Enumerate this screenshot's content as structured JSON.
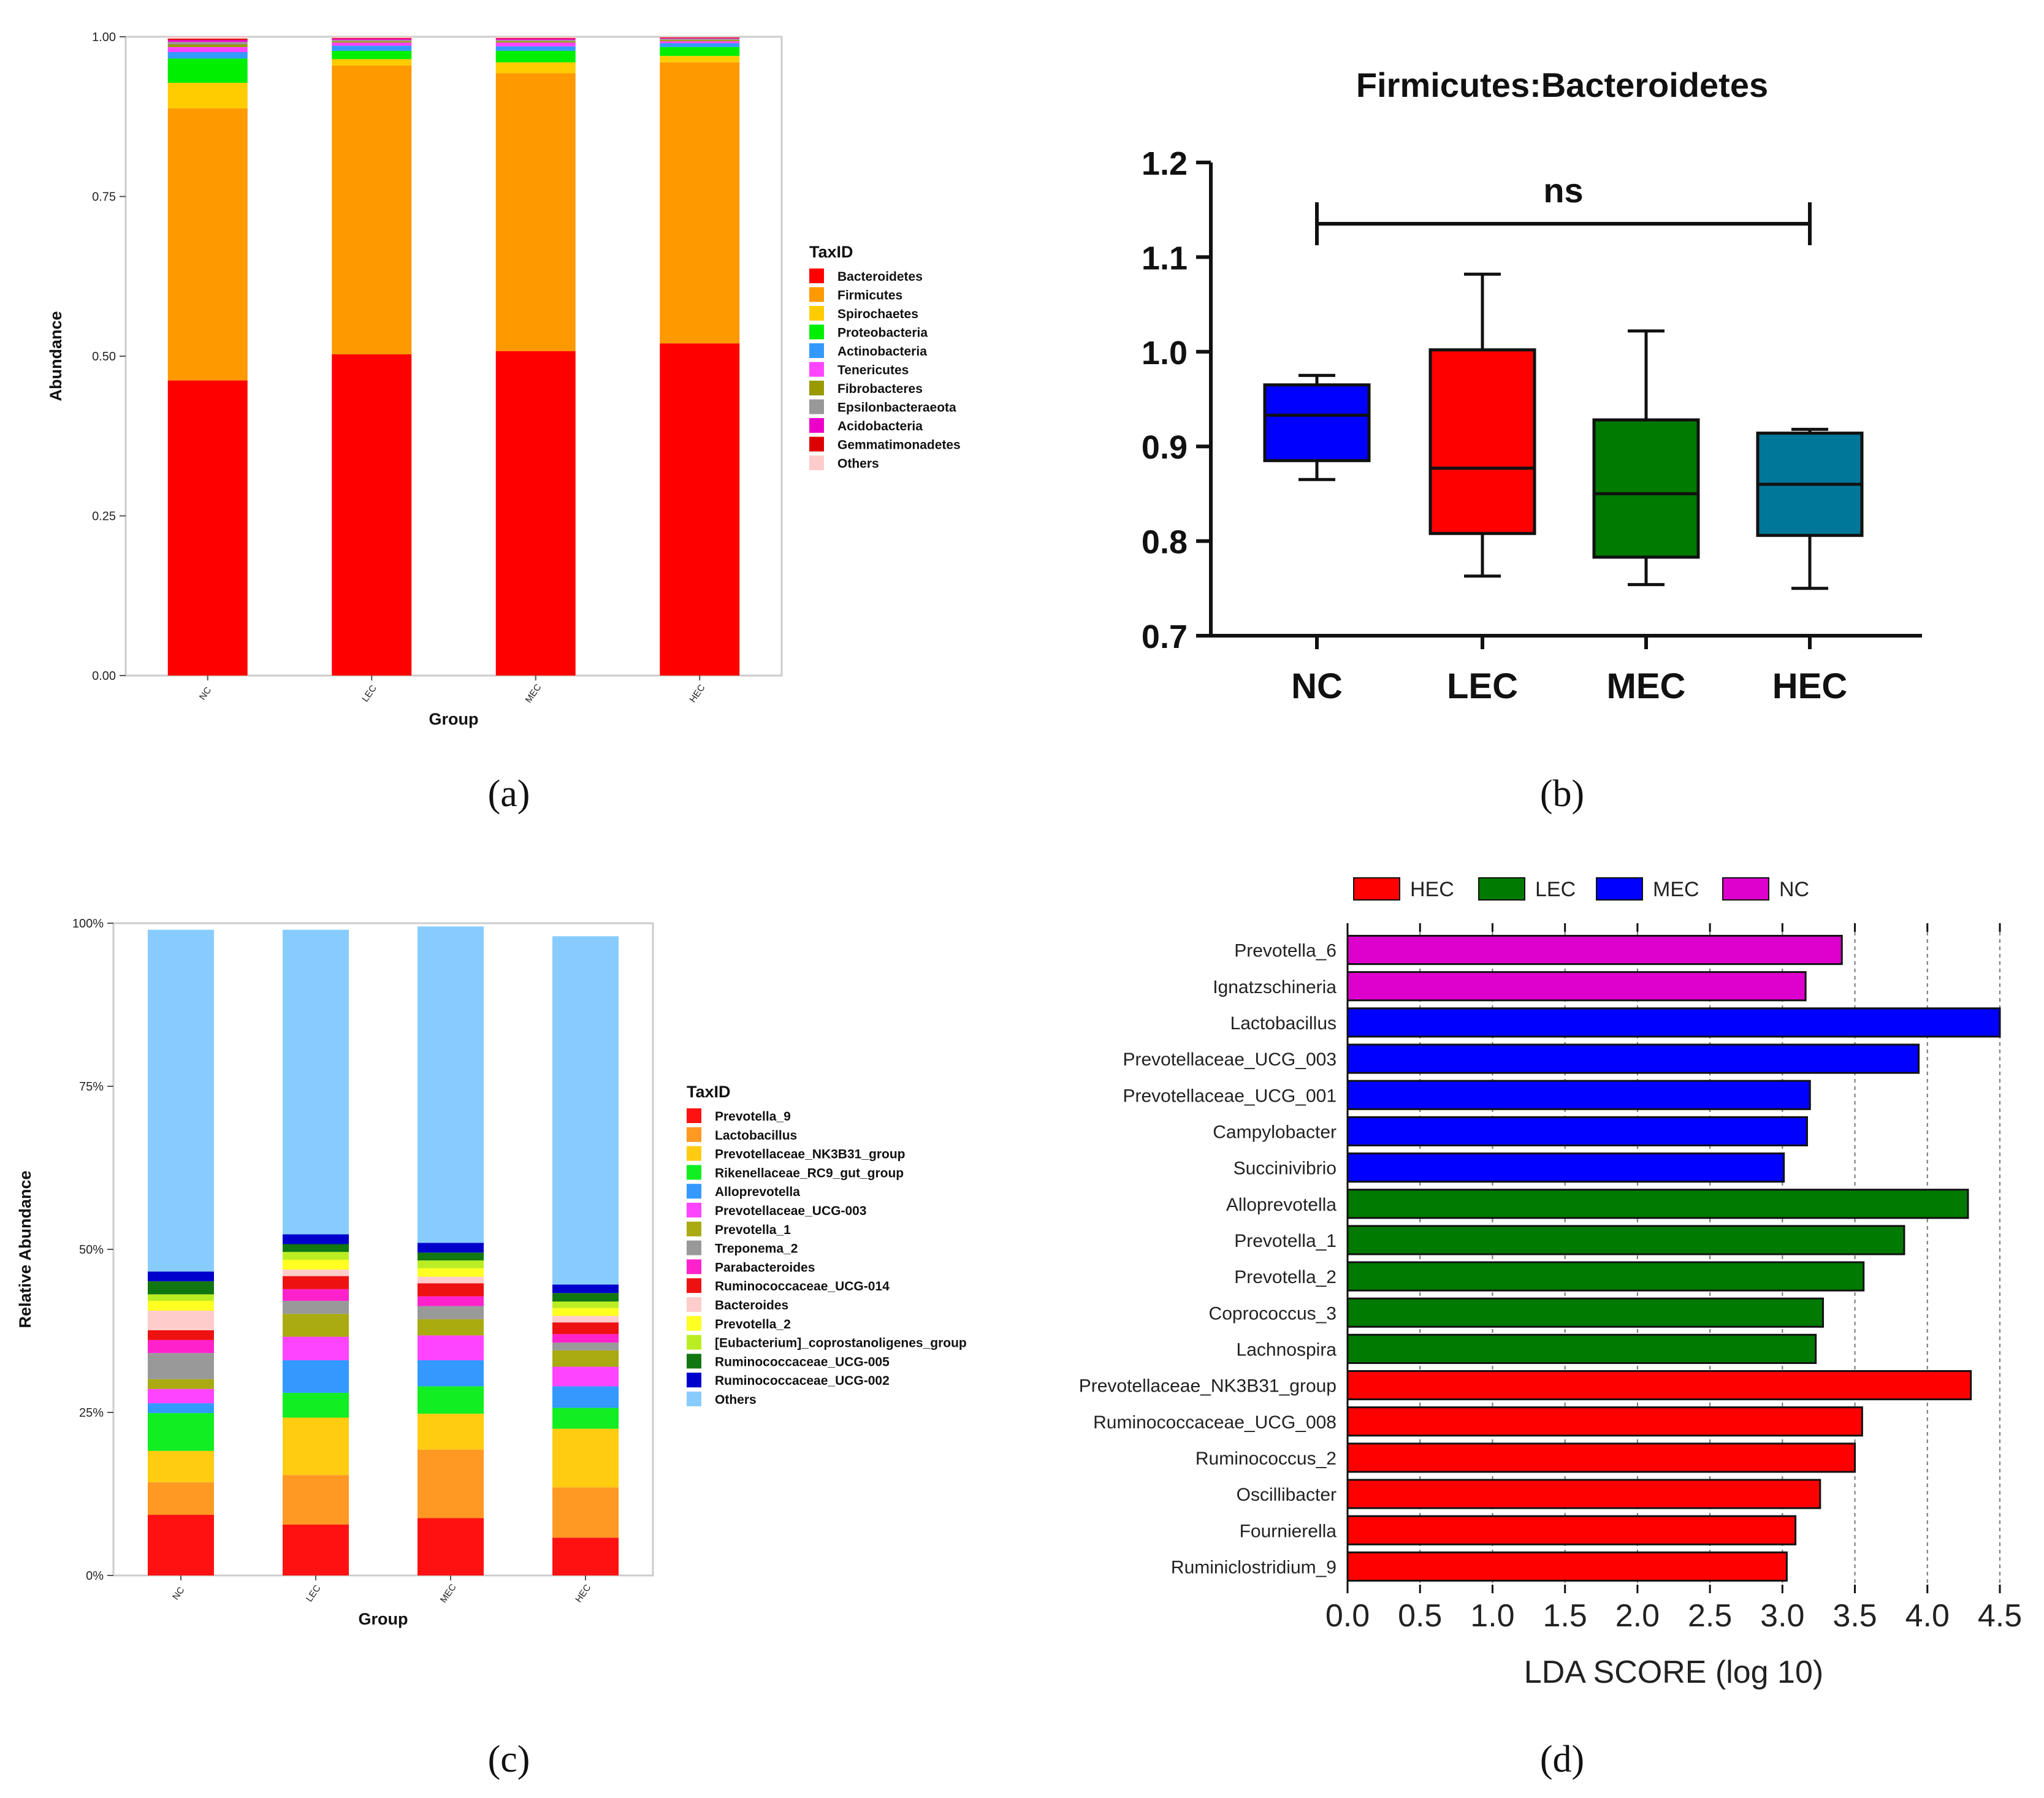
{
  "panel_labels": {
    "a": "(a)",
    "b": "(b)",
    "c": "(c)",
    "d": "(d)"
  },
  "chart_data": [
    {
      "panel": "a",
      "type": "bar",
      "stacked": true,
      "xlabel": "Group",
      "ylabel": "Abundance",
      "ylim": [
        0,
        1
      ],
      "yticks": [
        "0.00",
        "0.25",
        "0.50",
        "0.75",
        "1.00"
      ],
      "categories": [
        "NC",
        "LEC",
        "MEC",
        "HEC"
      ],
      "legend_title": "TaxID",
      "legend_position": "right",
      "series": [
        {
          "name": "Bacteroidetes",
          "color": "#ff0000",
          "values": [
            0.462,
            0.503,
            0.508,
            0.52
          ]
        },
        {
          "name": "Firmicutes",
          "color": "#ff9900",
          "values": [
            0.426,
            0.452,
            0.435,
            0.44
          ]
        },
        {
          "name": "Spirochaetes",
          "color": "#ffcc00",
          "values": [
            0.04,
            0.01,
            0.017,
            0.01
          ]
        },
        {
          "name": "Proteobacteria",
          "color": "#00ee00",
          "values": [
            0.038,
            0.013,
            0.018,
            0.014
          ]
        },
        {
          "name": "Actinobacteria",
          "color": "#3399ff",
          "values": [
            0.01,
            0.008,
            0.007,
            0.006
          ]
        },
        {
          "name": "Tenericutes",
          "color": "#ff44ff",
          "values": [
            0.008,
            0.005,
            0.006,
            0.003
          ]
        },
        {
          "name": "Fibrobacteres",
          "color": "#999900",
          "values": [
            0.004,
            0.002,
            0.002,
            0.002
          ]
        },
        {
          "name": "Epsilonbacteraeota",
          "color": "#999999",
          "values": [
            0.004,
            0.002,
            0.002,
            0.002
          ]
        },
        {
          "name": "Acidobacteria",
          "color": "#ee00cc",
          "values": [
            0.003,
            0.002,
            0.002,
            0.001
          ]
        },
        {
          "name": "Gemmatimonadetes",
          "color": "#dd0000",
          "values": [
            0.002,
            0.001,
            0.001,
            0.001
          ]
        },
        {
          "name": "Others",
          "color": "#ffcccc",
          "values": [
            0.003,
            0.002,
            0.002,
            0.001
          ]
        }
      ]
    },
    {
      "panel": "b",
      "type": "box",
      "title": "Firmicutes:Bacteroidetes",
      "ylim": [
        0.7,
        1.2
      ],
      "yticks": [
        "0.7",
        "0.8",
        "0.9",
        "1.0",
        "1.1",
        "1.2"
      ],
      "categories": [
        "NC",
        "LEC",
        "MEC",
        "HEC"
      ],
      "annotation": "ns",
      "boxes": [
        {
          "name": "NC",
          "color": "#0000ff",
          "min": 0.865,
          "q1": 0.885,
          "median": 0.933,
          "q3": 0.965,
          "max": 0.975
        },
        {
          "name": "LEC",
          "color": "#ff0000",
          "min": 0.763,
          "q1": 0.808,
          "median": 0.877,
          "q3": 1.002,
          "max": 1.082
        },
        {
          "name": "MEC",
          "color": "#007a00",
          "min": 0.754,
          "q1": 0.783,
          "median": 0.85,
          "q3": 0.928,
          "max": 1.022
        },
        {
          "name": "HEC",
          "color": "#007799",
          "min": 0.75,
          "q1": 0.806,
          "median": 0.86,
          "q3": 0.914,
          "max": 0.918
        }
      ]
    },
    {
      "panel": "c",
      "type": "bar",
      "stacked": true,
      "xlabel": "Group",
      "ylabel": "Relative Abundance",
      "ylim": [
        0,
        100
      ],
      "yticks": [
        "0%",
        "25%",
        "50%",
        "75%",
        "100%"
      ],
      "categories": [
        "NC",
        "LEC",
        "MEC",
        "HEC"
      ],
      "legend_title": "TaxID",
      "legend_position": "right",
      "series": [
        {
          "name": "Prevotella_9",
          "color": "#ff1111",
          "values": [
            9.3,
            7.8,
            8.8,
            5.8
          ]
        },
        {
          "name": "Lactobacillus",
          "color": "#ff9922",
          "values": [
            5.0,
            7.6,
            10.5,
            7.7
          ]
        },
        {
          "name": "Prevotellaceae_NK3B31_group",
          "color": "#ffcc11",
          "values": [
            4.8,
            8.8,
            5.5,
            9.0
          ]
        },
        {
          "name": "Rikenellaceae_RC9_gut_group",
          "color": "#11ee22",
          "values": [
            5.8,
            3.8,
            4.2,
            3.2
          ]
        },
        {
          "name": "Alloprevotella",
          "color": "#3399ff",
          "values": [
            1.5,
            5.0,
            4.0,
            3.3
          ]
        },
        {
          "name": "Prevotellaceae_UCG-003",
          "color": "#ff44ff",
          "values": [
            2.2,
            3.6,
            3.8,
            3.0
          ]
        },
        {
          "name": "Prevotella_1",
          "color": "#aaaa11",
          "values": [
            1.5,
            3.5,
            2.5,
            2.5
          ]
        },
        {
          "name": "Treponema_2",
          "color": "#999999",
          "values": [
            4.0,
            2.0,
            2.0,
            1.2
          ]
        },
        {
          "name": "Parabacteroides",
          "color": "#ff22cc",
          "values": [
            2.0,
            1.8,
            1.5,
            1.3
          ]
        },
        {
          "name": "Ruminococcaceae_UCG-014",
          "color": "#ee1111",
          "values": [
            1.5,
            2.0,
            2.0,
            1.8
          ]
        },
        {
          "name": "Bacteroides",
          "color": "#ffcccc",
          "values": [
            3.0,
            1.0,
            1.0,
            1.0
          ]
        },
        {
          "name": "Prevotella_2",
          "color": "#ffff22",
          "values": [
            1.5,
            1.5,
            1.3,
            1.2
          ]
        },
        {
          "name": "[Eubacterium]_coprostanoligenes_group",
          "color": "#bbee22",
          "values": [
            1.0,
            1.2,
            1.2,
            1.0
          ]
        },
        {
          "name": "Ruminococcaceae_UCG-005",
          "color": "#117711",
          "values": [
            2.0,
            1.2,
            1.2,
            1.3
          ]
        },
        {
          "name": "Ruminococcaceae_UCG-002",
          "color": "#0000cc",
          "values": [
            1.5,
            1.5,
            1.5,
            1.3
          ]
        },
        {
          "name": "Others",
          "color": "#88ccff",
          "values": [
            52.4,
            46.7,
            48.5,
            53.4
          ]
        }
      ]
    },
    {
      "panel": "d",
      "type": "bar",
      "orientation": "horizontal",
      "xlabel": "LDA SCORE (log 10)",
      "xlim": [
        0,
        4.5
      ],
      "xticks": [
        "0.0",
        "0.5",
        "1.0",
        "1.5",
        "2.0",
        "2.5",
        "3.0",
        "3.5",
        "4.0",
        "4.5"
      ],
      "legend_position": "top",
      "legend": [
        {
          "name": "HEC",
          "color": "#ff0000"
        },
        {
          "name": "LEC",
          "color": "#007a00"
        },
        {
          "name": "MEC",
          "color": "#0000ff"
        },
        {
          "name": "NC",
          "color": "#dd00cc"
        }
      ],
      "bars": [
        {
          "label": "Prevotella_6",
          "group": "NC",
          "value": 3.41
        },
        {
          "label": "Ignatzschineria",
          "group": "NC",
          "value": 3.16
        },
        {
          "label": "Lactobacillus",
          "group": "MEC",
          "value": 4.5
        },
        {
          "label": "Prevotellaceae_UCG_003",
          "group": "MEC",
          "value": 3.94
        },
        {
          "label": "Prevotellaceae_UCG_001",
          "group": "MEC",
          "value": 3.19
        },
        {
          "label": "Campylobacter",
          "group": "MEC",
          "value": 3.17
        },
        {
          "label": "Succinivibrio",
          "group": "MEC",
          "value": 3.01
        },
        {
          "label": "Alloprevotella",
          "group": "LEC",
          "value": 4.28
        },
        {
          "label": "Prevotella_1",
          "group": "LEC",
          "value": 3.84
        },
        {
          "label": "Prevotella_2",
          "group": "LEC",
          "value": 3.56
        },
        {
          "label": "Coprococcus_3",
          "group": "LEC",
          "value": 3.28
        },
        {
          "label": "Lachnospira",
          "group": "LEC",
          "value": 3.23
        },
        {
          "label": "Prevotellaceae_NK3B31_group",
          "group": "HEC",
          "value": 4.3
        },
        {
          "label": "Ruminococcaceae_UCG_008",
          "group": "HEC",
          "value": 3.55
        },
        {
          "label": "Ruminococcus_2",
          "group": "HEC",
          "value": 3.5
        },
        {
          "label": "Oscillibacter",
          "group": "HEC",
          "value": 3.26
        },
        {
          "label": "Fournierella",
          "group": "HEC",
          "value": 3.09
        },
        {
          "label": "Ruminiclostridium_9",
          "group": "HEC",
          "value": 3.03
        }
      ]
    }
  ]
}
